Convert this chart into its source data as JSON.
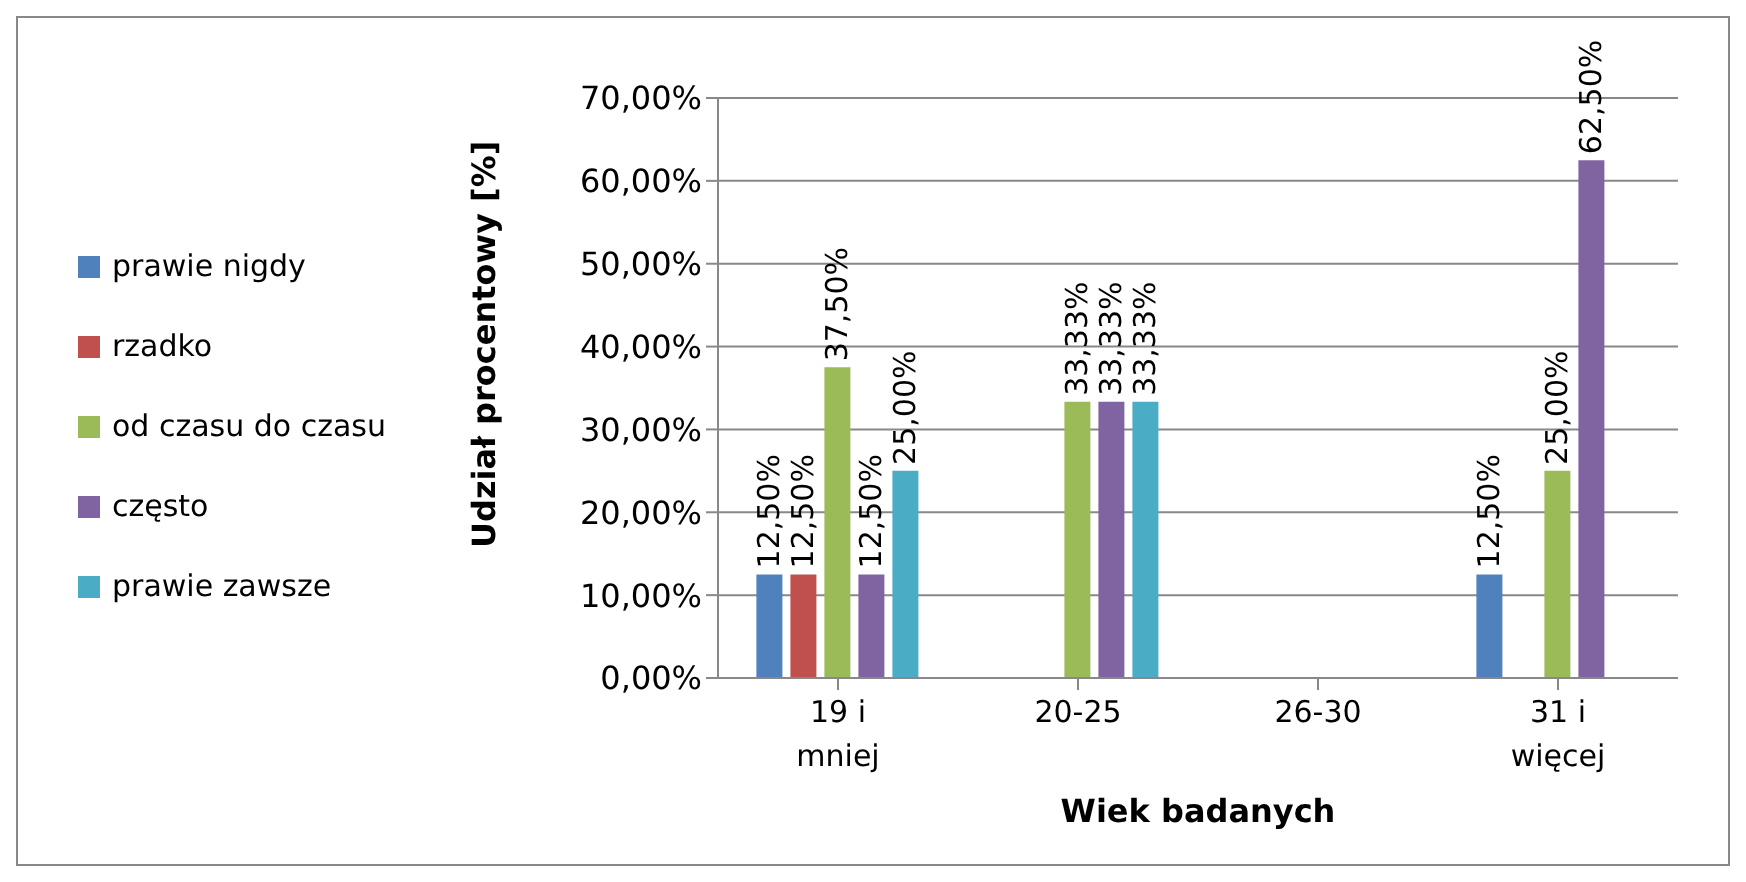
{
  "chart_data": {
    "type": "bar",
    "xlabel": "Wiek badanych",
    "ylabel": "Udział procentowy [%]",
    "categories": [
      "19 i mniej",
      "20-25",
      "26-30",
      "31 i więcej"
    ],
    "series": [
      {
        "name": "prawie nigdy",
        "color": "#4f81bd",
        "values": [
          12.5,
          null,
          null,
          12.5
        ],
        "value_labels": [
          "12,50%",
          null,
          null,
          "12,50%"
        ]
      },
      {
        "name": "rzadko",
        "color": "#c0504d",
        "values": [
          12.5,
          null,
          null,
          null
        ],
        "value_labels": [
          "12,50%",
          null,
          null,
          null
        ]
      },
      {
        "name": "od czasu do czasu",
        "color": "#9bbb59",
        "values": [
          37.5,
          33.33,
          null,
          25
        ],
        "value_labels": [
          "37,50%",
          "33,33%",
          null,
          "25,00%"
        ]
      },
      {
        "name": "często",
        "color": "#8064a2",
        "values": [
          12.5,
          33.33,
          null,
          62.5
        ],
        "value_labels": [
          "12,50%",
          "33,33%",
          null,
          "62,50%"
        ]
      },
      {
        "name": "prawie zawsze",
        "color": "#4bacc6",
        "values": [
          25,
          33.33,
          null,
          null
        ],
        "value_labels": [
          "25,00%",
          "33,33%",
          null,
          null
        ]
      }
    ],
    "ylim": [
      0,
      70
    ],
    "yticks": [
      {
        "value": 0,
        "label": "0,00%"
      },
      {
        "value": 10,
        "label": "10,00%"
      },
      {
        "value": 20,
        "label": "20,00%"
      },
      {
        "value": 30,
        "label": "30,00%"
      },
      {
        "value": 40,
        "label": "40,00%"
      },
      {
        "value": 50,
        "label": "50,00%"
      },
      {
        "value": 60,
        "label": "60,00%"
      },
      {
        "value": 70,
        "label": "70,00%"
      }
    ],
    "grid": "y",
    "legend": "left"
  }
}
